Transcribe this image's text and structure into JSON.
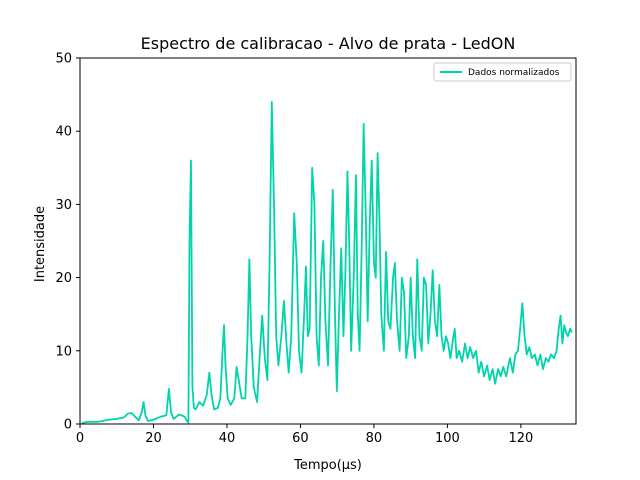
{
  "chart_data": {
    "type": "line",
    "title": "Espectro de calibracao - Alvo de prata - LedON",
    "xlabel": "Tempo(μs)",
    "ylabel": "Intensidade",
    "xlim": [
      0,
      135
    ],
    "ylim": [
      0,
      50
    ],
    "xticks": [
      0,
      20,
      40,
      60,
      80,
      100,
      120
    ],
    "yticks": [
      0,
      10,
      20,
      30,
      40,
      50
    ],
    "grid": false,
    "legend_position": "top-right",
    "series": [
      {
        "name": "Dados normalizados",
        "color": "#00d4aa",
        "points": [
          [
            0.5,
            0.1
          ],
          [
            2,
            0.3
          ],
          [
            5,
            0.3
          ],
          [
            8,
            0.6
          ],
          [
            10,
            0.7
          ],
          [
            12,
            0.9
          ],
          [
            13,
            1.4
          ],
          [
            14,
            1.5
          ],
          [
            15,
            1.0
          ],
          [
            16,
            0.5
          ],
          [
            16.8,
            1.6
          ],
          [
            17.3,
            3.0
          ],
          [
            17.8,
            1.2
          ],
          [
            18.5,
            0.4
          ],
          [
            20,
            0.6
          ],
          [
            22,
            1.0
          ],
          [
            23.5,
            1.2
          ],
          [
            24.2,
            4.8
          ],
          [
            24.8,
            1.5
          ],
          [
            25.5,
            0.7
          ],
          [
            27,
            1.3
          ],
          [
            28.5,
            1.0
          ],
          [
            29,
            0.5
          ],
          [
            29.5,
            0.2
          ],
          [
            29.8,
            25.0
          ],
          [
            30.2,
            36.0
          ],
          [
            30.6,
            5.0
          ],
          [
            31.0,
            2.2
          ],
          [
            31.5,
            2.0
          ],
          [
            32.5,
            3.0
          ],
          [
            33.5,
            2.5
          ],
          [
            34.5,
            4.0
          ],
          [
            35.2,
            7.0
          ],
          [
            35.8,
            4.0
          ],
          [
            36.5,
            2.0
          ],
          [
            37.5,
            2.2
          ],
          [
            38.2,
            3.5
          ],
          [
            38.8,
            10.0
          ],
          [
            39.2,
            13.5
          ],
          [
            39.6,
            8.0
          ],
          [
            40.2,
            3.5
          ],
          [
            41,
            2.6
          ],
          [
            42,
            3.5
          ],
          [
            42.6,
            7.8
          ],
          [
            43.2,
            6.0
          ],
          [
            44,
            3.5
          ],
          [
            45,
            3.5
          ],
          [
            45.6,
            12.0
          ],
          [
            46.1,
            22.5
          ],
          [
            46.6,
            12.0
          ],
          [
            47.3,
            5.0
          ],
          [
            48.2,
            3.0
          ],
          [
            49.0,
            10.0
          ],
          [
            49.6,
            14.8
          ],
          [
            50.3,
            9.0
          ],
          [
            51.0,
            6.0
          ],
          [
            51.6,
            22.0
          ],
          [
            52.2,
            44.0
          ],
          [
            52.8,
            30.0
          ],
          [
            53.4,
            12.0
          ],
          [
            54.0,
            8.0
          ],
          [
            54.8,
            12.0
          ],
          [
            55.5,
            16.8
          ],
          [
            56.2,
            11.0
          ],
          [
            56.8,
            7.0
          ],
          [
            57.5,
            12.0
          ],
          [
            58.3,
            28.8
          ],
          [
            59.0,
            22.0
          ],
          [
            59.6,
            10.0
          ],
          [
            60.3,
            7.0
          ],
          [
            61.0,
            15.0
          ],
          [
            61.5,
            21.5
          ],
          [
            62.0,
            12.0
          ],
          [
            62.5,
            13.0
          ],
          [
            63.2,
            35.0
          ],
          [
            63.8,
            30.0
          ],
          [
            64.4,
            12.0
          ],
          [
            65.0,
            8.0
          ],
          [
            65.6,
            20.0
          ],
          [
            66.2,
            25.0
          ],
          [
            66.8,
            14.0
          ],
          [
            67.5,
            8.0
          ],
          [
            68.2,
            22.0
          ],
          [
            68.8,
            32.0
          ],
          [
            69.4,
            15.0
          ],
          [
            69.9,
            4.5
          ],
          [
            70.5,
            15.0
          ],
          [
            71.1,
            24.0
          ],
          [
            71.7,
            12.0
          ],
          [
            72.2,
            20.0
          ],
          [
            72.8,
            34.5
          ],
          [
            73.3,
            24.0
          ],
          [
            73.8,
            10.0
          ],
          [
            74.5,
            20.0
          ],
          [
            75.1,
            34.0
          ],
          [
            75.6,
            15.0
          ],
          [
            76.1,
            10.0
          ],
          [
            76.7,
            25.0
          ],
          [
            77.2,
            41.0
          ],
          [
            77.8,
            28.0
          ],
          [
            78.3,
            14.0
          ],
          [
            78.9,
            28.0
          ],
          [
            79.4,
            36.0
          ],
          [
            80.0,
            22.0
          ],
          [
            80.5,
            20.0
          ],
          [
            81.0,
            37.0
          ],
          [
            81.5,
            28.0
          ],
          [
            82.0,
            15.0
          ],
          [
            82.7,
            10.0
          ],
          [
            83.3,
            23.5
          ],
          [
            83.9,
            14.0
          ],
          [
            84.5,
            13.0
          ],
          [
            85.2,
            20.0
          ],
          [
            85.7,
            22.0
          ],
          [
            86.3,
            14.0
          ],
          [
            87.0,
            10.0
          ],
          [
            87.6,
            20.0
          ],
          [
            88.2,
            18.0
          ],
          [
            88.8,
            9.0
          ],
          [
            89.5,
            12.0
          ],
          [
            90.0,
            20.0
          ],
          [
            90.6,
            12.0
          ],
          [
            91.2,
            9.0
          ],
          [
            91.8,
            22.5
          ],
          [
            92.4,
            12.0
          ],
          [
            93.0,
            10.0
          ],
          [
            93.6,
            20.0
          ],
          [
            94.2,
            19.0
          ],
          [
            94.8,
            11.0
          ],
          [
            95.4,
            15.0
          ],
          [
            96.0,
            21.0
          ],
          [
            96.6,
            14.0
          ],
          [
            97.2,
            12.0
          ],
          [
            97.8,
            19.0
          ],
          [
            98.4,
            12.0
          ],
          [
            99.0,
            10.0
          ],
          [
            99.6,
            12.0
          ],
          [
            100.2,
            11.0
          ],
          [
            100.8,
            9.0
          ],
          [
            101.5,
            11.5
          ],
          [
            102.0,
            13.0
          ],
          [
            102.5,
            9.0
          ],
          [
            103.2,
            10.0
          ],
          [
            104.0,
            8.5
          ],
          [
            104.8,
            11.0
          ],
          [
            105.5,
            9.0
          ],
          [
            106.2,
            10.5
          ],
          [
            107.0,
            9.0
          ],
          [
            107.8,
            10.0
          ],
          [
            108.5,
            7.0
          ],
          [
            109.2,
            8.5
          ],
          [
            110.0,
            6.5
          ],
          [
            110.8,
            8.0
          ],
          [
            111.5,
            6.0
          ],
          [
            112.3,
            7.5
          ],
          [
            113.0,
            5.5
          ],
          [
            113.8,
            7.5
          ],
          [
            114.5,
            6.5
          ],
          [
            115.2,
            7.8
          ],
          [
            116.0,
            6.5
          ],
          [
            117.0,
            9.0
          ],
          [
            117.8,
            7.0
          ],
          [
            118.5,
            9.5
          ],
          [
            119.2,
            10.0
          ],
          [
            119.8,
            13.0
          ],
          [
            120.4,
            16.5
          ],
          [
            121.0,
            12.0
          ],
          [
            121.6,
            9.5
          ],
          [
            122.3,
            10.5
          ],
          [
            123.0,
            9.0
          ],
          [
            123.8,
            9.5
          ],
          [
            124.5,
            8.0
          ],
          [
            125.3,
            9.5
          ],
          [
            126.0,
            7.5
          ],
          [
            126.8,
            9.0
          ],
          [
            127.5,
            8.5
          ],
          [
            128.2,
            9.5
          ],
          [
            129.0,
            9.0
          ],
          [
            129.7,
            10.0
          ],
          [
            130.3,
            13.0
          ],
          [
            130.8,
            14.8
          ],
          [
            131.3,
            11.0
          ],
          [
            131.8,
            13.5
          ],
          [
            132.3,
            12.5
          ],
          [
            132.8,
            12.0
          ],
          [
            133.4,
            13.0
          ],
          [
            133.9,
            12.5
          ]
        ]
      }
    ]
  }
}
